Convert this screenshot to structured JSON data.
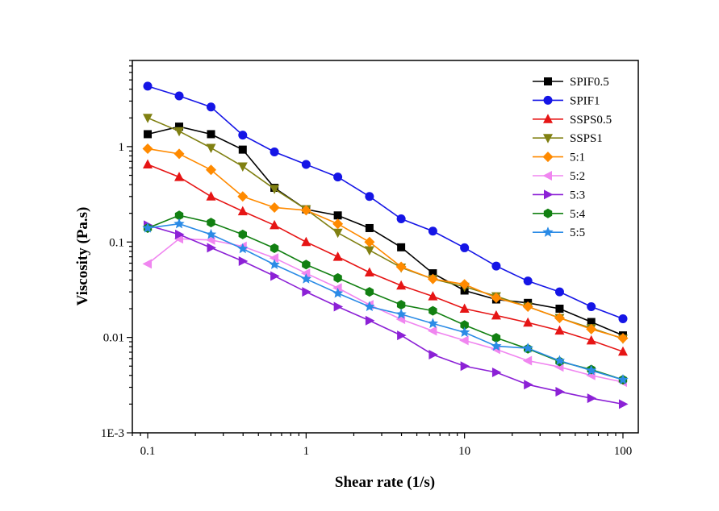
{
  "chart_data": {
    "type": "line",
    "xlabel": "Shear rate (1/s)",
    "ylabel": "Viscosity (Pa.s)",
    "x_scale": "log",
    "y_scale": "log",
    "xlim": [
      0.08,
      125
    ],
    "ylim": [
      0.001,
      8
    ],
    "x_ticks": [
      {
        "value": 0.1,
        "label": "0.1"
      },
      {
        "value": 1,
        "label": "1"
      },
      {
        "value": 10,
        "label": "10"
      },
      {
        "value": 100,
        "label": "100"
      }
    ],
    "y_ticks": [
      {
        "value": 0.001,
        "label": "1E-3"
      },
      {
        "value": 0.01,
        "label": "0.01"
      },
      {
        "value": 0.1,
        "label": "0.1"
      },
      {
        "value": 1,
        "label": "1"
      }
    ],
    "legend_position": "top-right",
    "grid": false,
    "x": [
      0.1,
      0.158,
      0.251,
      0.398,
      0.631,
      1,
      1.585,
      2.512,
      3.981,
      6.31,
      10,
      15.85,
      25.12,
      39.81,
      63.1,
      100
    ],
    "series": [
      {
        "name": "SPIF0.5",
        "color": "#000000",
        "marker": "square",
        "values": [
          1.35,
          1.62,
          1.35,
          0.93,
          0.37,
          0.22,
          0.19,
          0.14,
          0.088,
          0.047,
          0.031,
          0.025,
          0.023,
          0.02,
          0.0145,
          0.0105
        ]
      },
      {
        "name": "SPIF1",
        "color": "#1515e6",
        "marker": "circle",
        "values": [
          4.3,
          3.4,
          2.6,
          1.32,
          0.88,
          0.65,
          0.48,
          0.3,
          0.175,
          0.13,
          0.087,
          0.056,
          0.039,
          0.03,
          0.021,
          0.0157
        ]
      },
      {
        "name": "SSPS0.5",
        "color": "#e61515",
        "marker": "triangle-up",
        "values": [
          0.65,
          0.48,
          0.3,
          0.21,
          0.15,
          0.1,
          0.07,
          0.048,
          0.035,
          0.027,
          0.02,
          0.017,
          0.0143,
          0.0118,
          0.0093,
          0.0071
        ]
      },
      {
        "name": "SSPS1",
        "color": "#808012",
        "marker": "triangle-down",
        "values": [
          2.0,
          1.45,
          0.97,
          0.62,
          0.36,
          0.22,
          0.125,
          0.082,
          0.054,
          0.041,
          0.034,
          0.027,
          0.021,
          0.016,
          0.0125,
          0.0097
        ]
      },
      {
        "name": "5:1",
        "color": "#ff8a00",
        "marker": "diamond",
        "values": [
          0.95,
          0.84,
          0.57,
          0.3,
          0.23,
          0.215,
          0.155,
          0.1,
          0.055,
          0.041,
          0.036,
          0.026,
          0.021,
          0.016,
          0.0122,
          0.0098
        ]
      },
      {
        "name": "5:2",
        "color": "#f086f0",
        "marker": "triangle-left",
        "values": [
          0.059,
          0.108,
          0.105,
          0.09,
          0.068,
          0.047,
          0.033,
          0.022,
          0.0155,
          0.0117,
          0.0093,
          0.0075,
          0.0057,
          0.0049,
          0.004,
          0.0034
        ]
      },
      {
        "name": "5:3",
        "color": "#8c21d6",
        "marker": "triangle-right",
        "values": [
          0.15,
          0.12,
          0.087,
          0.063,
          0.044,
          0.03,
          0.021,
          0.015,
          0.0105,
          0.0066,
          0.005,
          0.0043,
          0.0032,
          0.0027,
          0.0023,
          0.002
        ]
      },
      {
        "name": "5:4",
        "color": "#128012",
        "marker": "hexagon",
        "values": [
          0.14,
          0.19,
          0.16,
          0.12,
          0.086,
          0.058,
          0.042,
          0.03,
          0.022,
          0.019,
          0.0135,
          0.0099,
          0.0076,
          0.0056,
          0.0046,
          0.0036
        ]
      },
      {
        "name": "5:5",
        "color": "#2b8be6",
        "marker": "star",
        "values": [
          0.14,
          0.155,
          0.12,
          0.085,
          0.058,
          0.041,
          0.029,
          0.021,
          0.0175,
          0.014,
          0.0113,
          0.0081,
          0.0077,
          0.0057,
          0.0045,
          0.0036
        ]
      }
    ]
  }
}
